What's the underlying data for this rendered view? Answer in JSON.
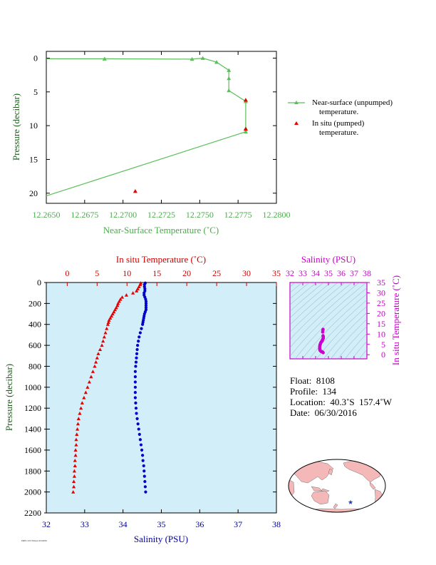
{
  "chart_data": [
    {
      "type": "line",
      "xlabel": "Near-Surface Temperature (˚C)",
      "ylabel": "Pressure (decibar)",
      "xlim": [
        12.265,
        12.28
      ],
      "ylim": [
        21.5,
        -1
      ],
      "xticks": [
        "12.2650",
        "12.2675",
        "12.2700",
        "12.2725",
        "12.2750",
        "12.2775",
        "12.2800"
      ],
      "yticks": [
        "0",
        "5",
        "10",
        "15",
        "20"
      ],
      "colors": {
        "near_surface": "#5cbf5c",
        "in_situ": "#e60000",
        "axis_labels": "#4daa4d"
      },
      "series": [
        {
          "name": "Near-surface (unpumped) temperature.",
          "x": [
            12.265,
            12.2688,
            12.2745,
            12.2752,
            12.2761,
            12.2769,
            12.2769,
            12.2769,
            12.278,
            12.278,
            12.278,
            12.265
          ],
          "y": [
            0.1,
            0.1,
            0.15,
            0.0,
            0.6,
            1.8,
            3.0,
            4.8,
            6.4,
            10.4,
            10.9,
            20.4
          ]
        },
        {
          "name": "In situ (pumped) temperature.",
          "x": [
            12.278,
            12.278,
            12.2708
          ],
          "y": [
            6.2,
            10.5,
            19.7
          ]
        }
      ],
      "legend": [
        {
          "line1": "Near-surface (unpumped)",
          "line2": "temperature."
        },
        {
          "line1": "In situ (pumped)",
          "line2": "temperature."
        }
      ]
    },
    {
      "type": "scatter",
      "ylabel": "Pressure (decibar)",
      "ylim": [
        2200,
        0
      ],
      "yticks": [
        "0",
        "200",
        "400",
        "600",
        "800",
        "1000",
        "1200",
        "1400",
        "1600",
        "1800",
        "2000",
        "2200"
      ],
      "top_axis": {
        "label": "In situ Temperature (˚C)",
        "lim": [
          -3.5,
          35
        ],
        "ticks": [
          "0",
          "5",
          "10",
          "15",
          "20",
          "25",
          "30",
          "35"
        ],
        "color": "#cc0000"
      },
      "bottom_axis": {
        "label": "Salinity (PSU)",
        "lim": [
          32,
          38
        ],
        "ticks": [
          "32",
          "33",
          "34",
          "35",
          "36",
          "37",
          "38"
        ],
        "color": "#000099"
      },
      "series": [
        {
          "name": "temperature",
          "axis": "top",
          "pressure": [
            5,
            20,
            40,
            60,
            80,
            100,
            120,
            140,
            160,
            180,
            200,
            220,
            240,
            260,
            280,
            300,
            320,
            340,
            360,
            380,
            400,
            440,
            480,
            520,
            560,
            600,
            640,
            680,
            720,
            760,
            800,
            850,
            900,
            950,
            1000,
            1050,
            1100,
            1150,
            1200,
            1250,
            1300,
            1350,
            1400,
            1450,
            1500,
            1550,
            1600,
            1650,
            1700,
            1750,
            1800,
            1850,
            1900,
            1950,
            2000
          ],
          "values": [
            12.3,
            12.2,
            12.0,
            11.8,
            11.6,
            11.0,
            9.9,
            9.2,
            8.9,
            8.7,
            8.5,
            8.4,
            8.2,
            8.0,
            7.8,
            7.6,
            7.4,
            7.2,
            7.0,
            6.9,
            6.8,
            6.6,
            6.4,
            6.2,
            6.0,
            5.8,
            5.5,
            5.2,
            5.0,
            4.8,
            4.6,
            4.3,
            4.0,
            3.7,
            3.4,
            3.1,
            2.8,
            2.5,
            2.3,
            2.1,
            1.9,
            1.8,
            1.7,
            1.6,
            1.5,
            1.5,
            1.4,
            1.4,
            1.3,
            1.3,
            1.2,
            1.2,
            1.1,
            1.1,
            1.0
          ]
        },
        {
          "name": "salinity",
          "axis": "bottom",
          "pressure": [
            5,
            20,
            40,
            60,
            80,
            100,
            120,
            140,
            160,
            180,
            200,
            220,
            240,
            260,
            280,
            300,
            320,
            340,
            360,
            380,
            400,
            440,
            480,
            520,
            560,
            600,
            640,
            680,
            720,
            760,
            800,
            850,
            900,
            950,
            1000,
            1050,
            1100,
            1150,
            1200,
            1250,
            1300,
            1350,
            1400,
            1450,
            1500,
            1550,
            1600,
            1650,
            1700,
            1750,
            1800,
            1850,
            1900,
            1950,
            2000
          ],
          "values": [
            34.58,
            34.56,
            34.56,
            34.57,
            34.57,
            34.55,
            34.55,
            34.57,
            34.59,
            34.6,
            34.6,
            34.6,
            34.6,
            34.6,
            34.58,
            34.56,
            34.55,
            34.54,
            34.53,
            34.52,
            34.51,
            34.48,
            34.45,
            34.42,
            34.4,
            34.38,
            34.37,
            34.36,
            34.35,
            34.34,
            34.33,
            34.32,
            34.32,
            34.32,
            34.32,
            34.32,
            34.32,
            34.33,
            34.34,
            34.35,
            34.37,
            34.39,
            34.41,
            34.43,
            34.45,
            34.47,
            34.49,
            34.51,
            34.52,
            34.54,
            34.55,
            34.56,
            34.57,
            34.58,
            34.59
          ]
        }
      ]
    },
    {
      "type": "scatter",
      "title": "Salinity (PSU)",
      "ylabel": "In situ Temperature (˚C)",
      "xlim": [
        32,
        38
      ],
      "ylim": [
        -2,
        35
      ],
      "xticks": [
        "32",
        "33",
        "34",
        "35",
        "36",
        "37",
        "38"
      ],
      "yticks": [
        "0",
        "5",
        "10",
        "15",
        "20",
        "25",
        "30",
        "35"
      ],
      "color": "#cc00cc",
      "points": [
        [
          34.58,
          12.3
        ],
        [
          34.57,
          11.8
        ],
        [
          34.55,
          11.0
        ],
        [
          34.58,
          9.2
        ],
        [
          34.6,
          8.7
        ],
        [
          34.6,
          8.4
        ],
        [
          34.6,
          8.0
        ],
        [
          34.57,
          7.6
        ],
        [
          34.54,
          7.2
        ],
        [
          34.52,
          6.9
        ],
        [
          34.5,
          6.6
        ],
        [
          34.45,
          6.2
        ],
        [
          34.4,
          5.8
        ],
        [
          34.37,
          5.2
        ],
        [
          34.35,
          4.8
        ],
        [
          34.33,
          4.3
        ],
        [
          34.32,
          3.7
        ],
        [
          34.32,
          3.1
        ],
        [
          34.33,
          2.5
        ],
        [
          34.35,
          2.1
        ],
        [
          34.39,
          1.8
        ],
        [
          34.43,
          1.6
        ],
        [
          34.47,
          1.5
        ],
        [
          34.51,
          1.4
        ],
        [
          34.55,
          1.2
        ],
        [
          34.59,
          1.0
        ]
      ]
    }
  ],
  "info": {
    "float": "Float:  8108",
    "profile": "Profile:  134",
    "location": "Location:  40.3˚S  157.4˚W",
    "date": "Date:  06/30/2016"
  },
  "map": {
    "land_color": "#f5b8b8",
    "ocean_color": "#ffffff",
    "marker_color": "#1a3bd9"
  },
  "footnote": "PMEL/UW/NOAA 20160630"
}
